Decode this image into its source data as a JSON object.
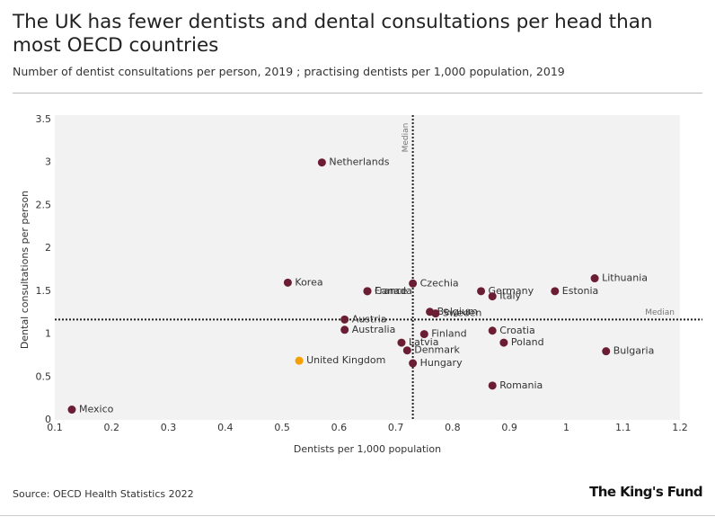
{
  "chart_data": {
    "type": "scatter",
    "title": "The UK has fewer dentists and dental consultations per head than most OECD countries",
    "subtitle": "Number of dentist consultations per person, 2019 ; practising dentists per 1,000 population, 2019",
    "x_label": "Dentists per 1,000 population",
    "y_label": "Dental consultations per person",
    "labels": [
      "Mexico",
      "Korea",
      "Netherlands",
      "Austria",
      "Australia",
      "United Kingdom",
      "France",
      "Canada",
      "Czechia",
      "Latvia",
      "Denmark",
      "Hungary",
      "Finland",
      "Belgium",
      "Sweden",
      "Germany",
      "Italy",
      "Croatia",
      "Poland",
      "Romania",
      "Estonia",
      "Lithuania",
      "Bulgaria"
    ],
    "x": [
      0.13,
      0.51,
      0.57,
      0.61,
      0.61,
      0.53,
      0.65,
      0.65,
      0.73,
      0.71,
      0.72,
      0.73,
      0.75,
      0.76,
      0.77,
      0.85,
      0.87,
      0.87,
      0.89,
      0.87,
      0.98,
      1.05,
      1.07
    ],
    "values": [
      0.12,
      1.6,
      3.0,
      1.17,
      1.05,
      0.69,
      1.5,
      1.5,
      1.59,
      0.9,
      0.81,
      0.66,
      1.0,
      1.26,
      1.24,
      1.5,
      1.44,
      1.04,
      0.9,
      0.4,
      1.5,
      1.65,
      0.8
    ],
    "colors": [
      "#6b1d33",
      "#6b1d33",
      "#6b1d33",
      "#6b1d33",
      "#6b1d33",
      "#f5a000",
      "#6b1d33",
      "#6b1d33",
      "#6b1d33",
      "#6b1d33",
      "#6b1d33",
      "#6b1d33",
      "#6b1d33",
      "#6b1d33",
      "#6b1d33",
      "#6b1d33",
      "#6b1d33",
      "#6b1d33",
      "#6b1d33",
      "#6b1d33",
      "#6b1d33",
      "#6b1d33",
      "#6b1d33"
    ],
    "medians": {
      "x": 0.73,
      "y": 1.17,
      "label": "Median"
    },
    "xlim": [
      0.1,
      1.2
    ],
    "xticks": [
      0.1,
      0.2,
      0.3,
      0.4,
      0.5,
      0.6,
      0.7,
      0.8,
      0.9,
      1,
      1.1,
      1.2
    ],
    "ylim": [
      0,
      3.5
    ],
    "yticks": [
      0,
      0.5,
      1,
      1.5,
      2,
      2.5,
      3,
      3.5
    ],
    "source": "Source: OECD Health Statistics 2022",
    "brand": "The King's Fund"
  }
}
